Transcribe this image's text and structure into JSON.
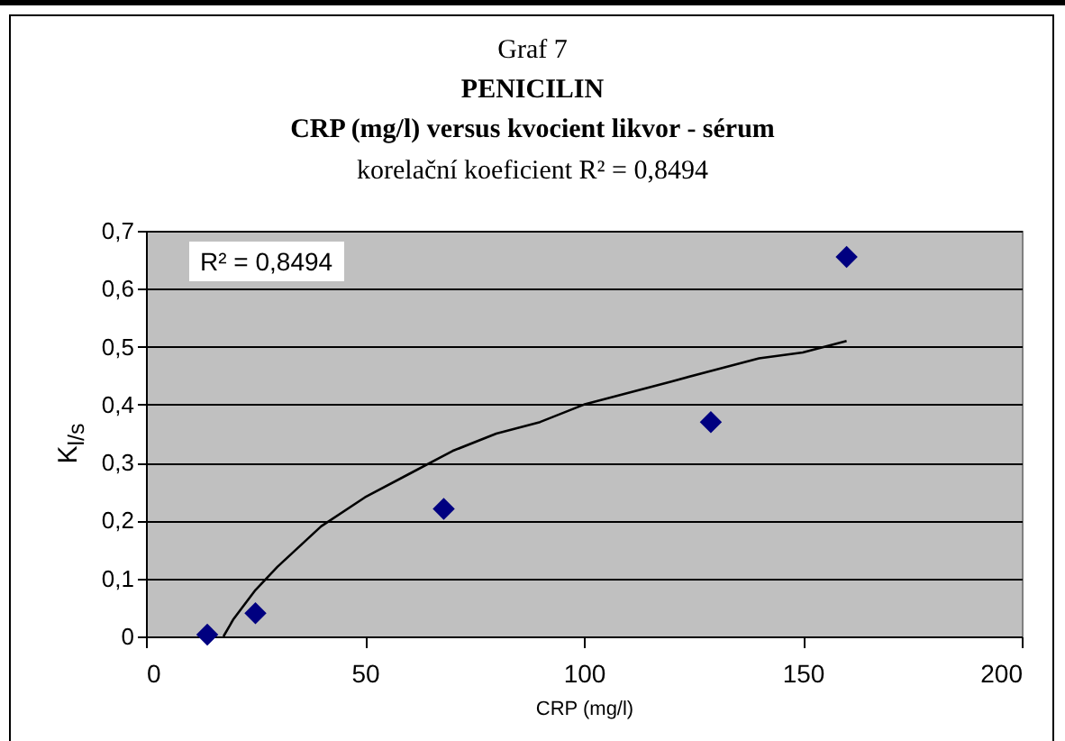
{
  "chart_data": {
    "type": "scatter",
    "title": "Graf 7",
    "subtitle": "PENICILIN",
    "annotations": [
      "CRP (mg/l) versus kvocient likvor - sérum",
      "korelační koeficient R² = 0,8494",
      "R² = 0,8494"
    ],
    "xlabel": "CRP (mg/l)",
    "ylabel": "K$_{l/s}$",
    "xlim": [
      0,
      200
    ],
    "xticks": [
      0,
      50,
      100,
      150,
      200
    ],
    "ylim": [
      0,
      0.7
    ],
    "yticks": [
      {
        "value": 0,
        "label": "0"
      },
      {
        "value": 0.1,
        "label": "0,1"
      },
      {
        "value": 0.2,
        "label": "0,2"
      },
      {
        "value": 0.3,
        "label": "0,3"
      },
      {
        "value": 0.4,
        "label": "0,4"
      },
      {
        "value": 0.5,
        "label": "0,5"
      },
      {
        "value": 0.6,
        "label": "0,6"
      },
      {
        "value": 0.7,
        "label": "0,7"
      }
    ],
    "grid": "y",
    "series": [
      {
        "type": "scatter",
        "marker": "diamond",
        "color": "#000080",
        "x": [
          14,
          25,
          68,
          129,
          160
        ],
        "values": [
          0.003,
          0.04,
          0.22,
          0.37,
          0.655
        ]
      },
      {
        "type": "line",
        "color": "#000000",
        "x": [
          17.7,
          20,
          25,
          30,
          40,
          50,
          60,
          70,
          80,
          90,
          100,
          110,
          120,
          130,
          140,
          150,
          160
        ],
        "values": [
          0,
          0.03,
          0.08,
          0.12,
          0.19,
          0.24,
          0.28,
          0.32,
          0.35,
          0.37,
          0.4,
          0.42,
          0.44,
          0.46,
          0.48,
          0.49,
          0.51
        ]
      }
    ]
  }
}
